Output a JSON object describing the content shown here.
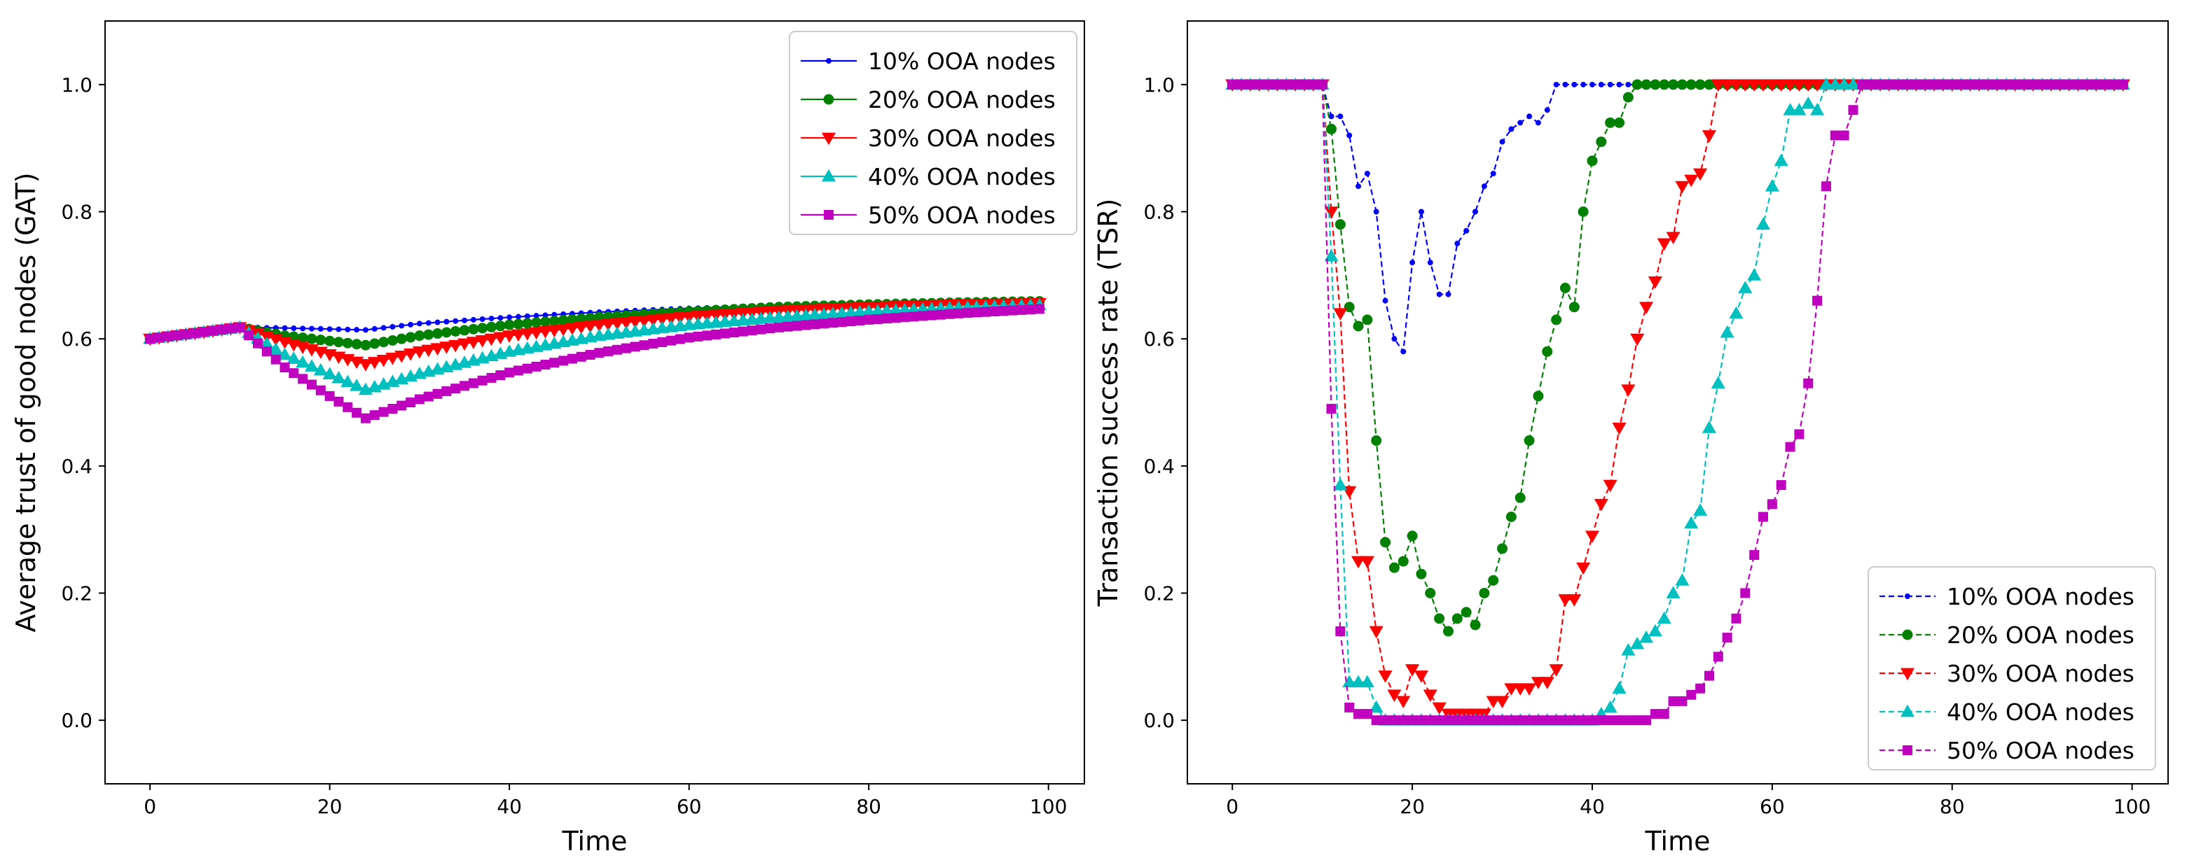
{
  "chart_data": [
    {
      "type": "line",
      "title": "",
      "xlabel": "Time",
      "ylabel": "Average trust of good nodes (GAT)",
      "xlim": [
        -5,
        104
      ],
      "ylim": [
        -0.1,
        1.1
      ],
      "xticks": [
        0,
        20,
        40,
        60,
        80,
        100
      ],
      "yticks": [
        0.0,
        0.2,
        0.4,
        0.6,
        0.8,
        1.0
      ],
      "xtick_labels": [
        "0",
        "20",
        "40",
        "60",
        "80",
        "100"
      ],
      "ytick_labels": [
        "0.0",
        "0.2",
        "0.4",
        "0.6",
        "0.8",
        "1.0"
      ],
      "line_style": "solid",
      "legend_position": "top-right",
      "x": [
        0,
        99
      ],
      "series": [
        {
          "name": "10% OOA nodes",
          "color": "#0000ff",
          "marker": "dot",
          "points": [
            [
              0,
              0.6
            ],
            [
              10,
              0.618
            ],
            [
              15,
              0.617
            ],
            [
              24,
              0.614
            ],
            [
              30,
              0.624
            ],
            [
              40,
              0.634
            ],
            [
              50,
              0.642
            ],
            [
              60,
              0.648
            ],
            [
              70,
              0.652
            ],
            [
              80,
              0.656
            ],
            [
              90,
              0.658
            ],
            [
              99,
              0.66
            ]
          ]
        },
        {
          "name": "20% OOA nodes",
          "color": "#008000",
          "marker": "circle",
          "points": [
            [
              0,
              0.6
            ],
            [
              10,
              0.618
            ],
            [
              15,
              0.605
            ],
            [
              24,
              0.59
            ],
            [
              30,
              0.605
            ],
            [
              40,
              0.622
            ],
            [
              50,
              0.634
            ],
            [
              60,
              0.643
            ],
            [
              70,
              0.65
            ],
            [
              80,
              0.654
            ],
            [
              90,
              0.657
            ],
            [
              99,
              0.659
            ]
          ]
        },
        {
          "name": "30% OOA nodes",
          "color": "#ff0000",
          "marker": "triangle-down",
          "points": [
            [
              0,
              0.6
            ],
            [
              10,
              0.618
            ],
            [
              15,
              0.595
            ],
            [
              24,
              0.56
            ],
            [
              30,
              0.58
            ],
            [
              40,
              0.605
            ],
            [
              50,
              0.622
            ],
            [
              60,
              0.635
            ],
            [
              70,
              0.644
            ],
            [
              80,
              0.65
            ],
            [
              90,
              0.654
            ],
            [
              99,
              0.656
            ]
          ]
        },
        {
          "name": "40% OOA nodes",
          "color": "#00bfbf",
          "marker": "triangle-up",
          "points": [
            [
              0,
              0.6
            ],
            [
              10,
              0.618
            ],
            [
              15,
              0.575
            ],
            [
              24,
              0.52
            ],
            [
              30,
              0.545
            ],
            [
              40,
              0.58
            ],
            [
              50,
              0.605
            ],
            [
              60,
              0.622
            ],
            [
              70,
              0.634
            ],
            [
              80,
              0.643
            ],
            [
              90,
              0.649
            ],
            [
              99,
              0.653
            ]
          ]
        },
        {
          "name": "50% OOA nodes",
          "color": "#bf00bf",
          "marker": "square",
          "points": [
            [
              0,
              0.6
            ],
            [
              10,
              0.618
            ],
            [
              15,
              0.555
            ],
            [
              20,
              0.51
            ],
            [
              24,
              0.475
            ],
            [
              30,
              0.505
            ],
            [
              40,
              0.547
            ],
            [
              50,
              0.578
            ],
            [
              60,
              0.602
            ],
            [
              70,
              0.618
            ],
            [
              80,
              0.63
            ],
            [
              90,
              0.64
            ],
            [
              99,
              0.647
            ]
          ]
        }
      ]
    },
    {
      "type": "line",
      "title": "",
      "xlabel": "Time",
      "ylabel": "Transaction success rate (TSR)",
      "xlim": [
        -5,
        104
      ],
      "ylim": [
        -0.1,
        1.1
      ],
      "xticks": [
        0,
        20,
        40,
        60,
        80,
        100
      ],
      "yticks": [
        0.0,
        0.2,
        0.4,
        0.6,
        0.8,
        1.0
      ],
      "xtick_labels": [
        "0",
        "20",
        "40",
        "60",
        "80",
        "100"
      ],
      "ytick_labels": [
        "0.0",
        "0.2",
        "0.4",
        "0.6",
        "0.8",
        "1.0"
      ],
      "line_style": "dashed",
      "legend_position": "bottom-right",
      "x": [
        0,
        99
      ],
      "series": [
        {
          "name": "10% OOA nodes",
          "color": "#0000ff",
          "marker": "dot",
          "points": [
            [
              0,
              1.0
            ],
            [
              10,
              1.0
            ],
            [
              11,
              0.95
            ],
            [
              12,
              0.95
            ],
            [
              13,
              0.92
            ],
            [
              14,
              0.84
            ],
            [
              15,
              0.86
            ],
            [
              16,
              0.8
            ],
            [
              17,
              0.66
            ],
            [
              18,
              0.6
            ],
            [
              19,
              0.58
            ],
            [
              20,
              0.72
            ],
            [
              21,
              0.8
            ],
            [
              22,
              0.72
            ],
            [
              23,
              0.67
            ],
            [
              24,
              0.67
            ],
            [
              25,
              0.75
            ],
            [
              26,
              0.77
            ],
            [
              27,
              0.8
            ],
            [
              28,
              0.84
            ],
            [
              29,
              0.86
            ],
            [
              30,
              0.91
            ],
            [
              31,
              0.93
            ],
            [
              32,
              0.94
            ],
            [
              33,
              0.95
            ],
            [
              34,
              0.94
            ],
            [
              35,
              0.96
            ],
            [
              36,
              1.0
            ],
            [
              99,
              1.0
            ]
          ]
        },
        {
          "name": "20% OOA nodes",
          "color": "#008000",
          "marker": "circle",
          "points": [
            [
              0,
              1.0
            ],
            [
              10,
              1.0
            ],
            [
              11,
              0.93
            ],
            [
              12,
              0.78
            ],
            [
              13,
              0.65
            ],
            [
              14,
              0.62
            ],
            [
              15,
              0.63
            ],
            [
              16,
              0.44
            ],
            [
              17,
              0.28
            ],
            [
              18,
              0.24
            ],
            [
              19,
              0.25
            ],
            [
              20,
              0.29
            ],
            [
              21,
              0.23
            ],
            [
              22,
              0.2
            ],
            [
              23,
              0.16
            ],
            [
              24,
              0.14
            ],
            [
              25,
              0.16
            ],
            [
              26,
              0.17
            ],
            [
              27,
              0.15
            ],
            [
              28,
              0.2
            ],
            [
              29,
              0.22
            ],
            [
              30,
              0.27
            ],
            [
              31,
              0.32
            ],
            [
              32,
              0.35
            ],
            [
              33,
              0.44
            ],
            [
              34,
              0.51
            ],
            [
              35,
              0.58
            ],
            [
              36,
              0.63
            ],
            [
              37,
              0.68
            ],
            [
              38,
              0.65
            ],
            [
              39,
              0.8
            ],
            [
              40,
              0.88
            ],
            [
              41,
              0.91
            ],
            [
              42,
              0.94
            ],
            [
              43,
              0.94
            ],
            [
              44,
              0.98
            ],
            [
              45,
              1.0
            ],
            [
              99,
              1.0
            ]
          ]
        },
        {
          "name": "30% OOA nodes",
          "color": "#ff0000",
          "marker": "triangle-down",
          "points": [
            [
              0,
              1.0
            ],
            [
              10,
              1.0
            ],
            [
              11,
              0.8
            ],
            [
              12,
              0.64
            ],
            [
              13,
              0.36
            ],
            [
              14,
              0.25
            ],
            [
              15,
              0.25
            ],
            [
              16,
              0.14
            ],
            [
              17,
              0.07
            ],
            [
              18,
              0.04
            ],
            [
              19,
              0.03
            ],
            [
              20,
              0.08
            ],
            [
              21,
              0.07
            ],
            [
              22,
              0.04
            ],
            [
              23,
              0.02
            ],
            [
              24,
              0.01
            ],
            [
              25,
              0.01
            ],
            [
              26,
              0.01
            ],
            [
              27,
              0.01
            ],
            [
              28,
              0.01
            ],
            [
              29,
              0.03
            ],
            [
              30,
              0.03
            ],
            [
              31,
              0.05
            ],
            [
              32,
              0.05
            ],
            [
              33,
              0.05
            ],
            [
              34,
              0.06
            ],
            [
              35,
              0.06
            ],
            [
              36,
              0.08
            ],
            [
              37,
              0.19
            ],
            [
              38,
              0.19
            ],
            [
              39,
              0.24
            ],
            [
              40,
              0.29
            ],
            [
              41,
              0.34
            ],
            [
              42,
              0.37
            ],
            [
              43,
              0.46
            ],
            [
              44,
              0.52
            ],
            [
              45,
              0.6
            ],
            [
              46,
              0.65
            ],
            [
              47,
              0.69
            ],
            [
              48,
              0.75
            ],
            [
              49,
              0.76
            ],
            [
              50,
              0.84
            ],
            [
              51,
              0.85
            ],
            [
              52,
              0.86
            ],
            [
              53,
              0.92
            ],
            [
              54,
              1.0
            ],
            [
              99,
              1.0
            ]
          ]
        },
        {
          "name": "40% OOA nodes",
          "color": "#00bfbf",
          "marker": "triangle-up",
          "points": [
            [
              0,
              1.0
            ],
            [
              10,
              1.0
            ],
            [
              11,
              0.73
            ],
            [
              12,
              0.37
            ],
            [
              13,
              0.06
            ],
            [
              14,
              0.06
            ],
            [
              15,
              0.06
            ],
            [
              16,
              0.02
            ],
            [
              17,
              0.0
            ],
            [
              40,
              0.0
            ],
            [
              41,
              0.01
            ],
            [
              42,
              0.02
            ],
            [
              43,
              0.05
            ],
            [
              44,
              0.11
            ],
            [
              45,
              0.12
            ],
            [
              46,
              0.13
            ],
            [
              47,
              0.14
            ],
            [
              48,
              0.16
            ],
            [
              49,
              0.2
            ],
            [
              50,
              0.22
            ],
            [
              51,
              0.31
            ],
            [
              52,
              0.33
            ],
            [
              53,
              0.46
            ],
            [
              54,
              0.53
            ],
            [
              55,
              0.61
            ],
            [
              56,
              0.64
            ],
            [
              57,
              0.68
            ],
            [
              58,
              0.7
            ],
            [
              59,
              0.78
            ],
            [
              60,
              0.84
            ],
            [
              61,
              0.88
            ],
            [
              62,
              0.96
            ],
            [
              63,
              0.96
            ],
            [
              64,
              0.97
            ],
            [
              65,
              0.96
            ],
            [
              66,
              1.0
            ],
            [
              99,
              1.0
            ]
          ]
        },
        {
          "name": "50% OOA nodes",
          "color": "#bf00bf",
          "marker": "square",
          "points": [
            [
              0,
              1.0
            ],
            [
              10,
              1.0
            ],
            [
              11,
              0.49
            ],
            [
              12,
              0.14
            ],
            [
              13,
              0.02
            ],
            [
              14,
              0.01
            ],
            [
              15,
              0.01
            ],
            [
              16,
              0.0
            ],
            [
              46,
              0.0
            ],
            [
              47,
              0.01
            ],
            [
              48,
              0.01
            ],
            [
              49,
              0.03
            ],
            [
              50,
              0.03
            ],
            [
              51,
              0.04
            ],
            [
              52,
              0.05
            ],
            [
              53,
              0.07
            ],
            [
              54,
              0.1
            ],
            [
              55,
              0.13
            ],
            [
              56,
              0.16
            ],
            [
              57,
              0.2
            ],
            [
              58,
              0.26
            ],
            [
              59,
              0.32
            ],
            [
              60,
              0.34
            ],
            [
              61,
              0.37
            ],
            [
              62,
              0.43
            ],
            [
              63,
              0.45
            ],
            [
              64,
              0.53
            ],
            [
              65,
              0.66
            ],
            [
              66,
              0.84
            ],
            [
              67,
              0.92
            ],
            [
              68,
              0.92
            ],
            [
              69,
              0.96
            ],
            [
              70,
              1.0
            ],
            [
              99,
              1.0
            ]
          ]
        }
      ]
    }
  ]
}
